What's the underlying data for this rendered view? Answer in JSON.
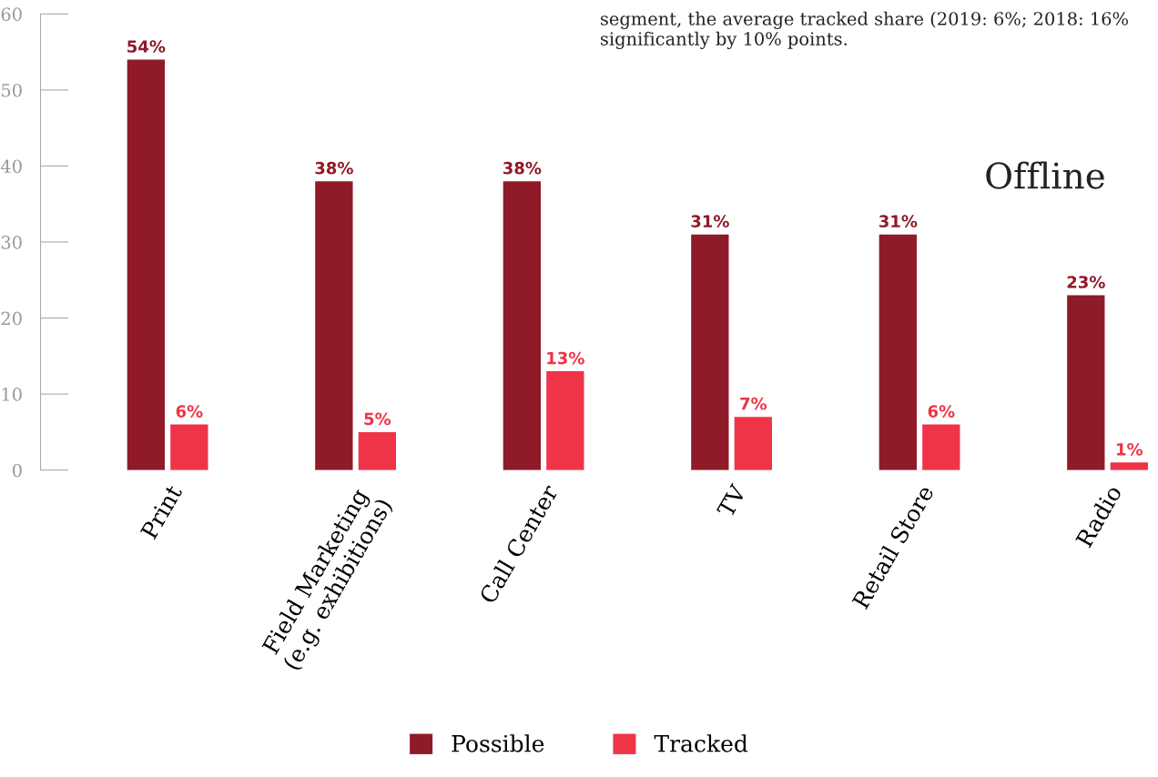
{
  "chart_data": {
    "type": "bar",
    "categories": [
      "Print",
      "Field Marketing\n(e.g. exhibitions)",
      "Call Center",
      "TV",
      "Retail Store",
      "Radio"
    ],
    "series": [
      {
        "name": "Possible",
        "color": "#8f1a28",
        "values": [
          54,
          38,
          38,
          31,
          31,
          23
        ],
        "value_labels": [
          "54%",
          "38%",
          "38%",
          "31%",
          "31%",
          "23%"
        ]
      },
      {
        "name": "Tracked",
        "color": "#ee3446",
        "values": [
          6,
          5,
          13,
          7,
          6,
          1
        ],
        "value_labels": [
          "6%",
          "5%",
          "13%",
          "7%",
          "6%",
          "1%"
        ]
      }
    ],
    "ylim": [
      0,
      60
    ],
    "yticks": [
      0,
      10,
      20,
      30,
      40,
      50,
      60
    ],
    "annotations": [
      "segment, the average tracked share (2019: 6%; 2018: 16% significantly by 10% points.",
      "Offline"
    ],
    "grid": false,
    "legend": "bottom"
  }
}
